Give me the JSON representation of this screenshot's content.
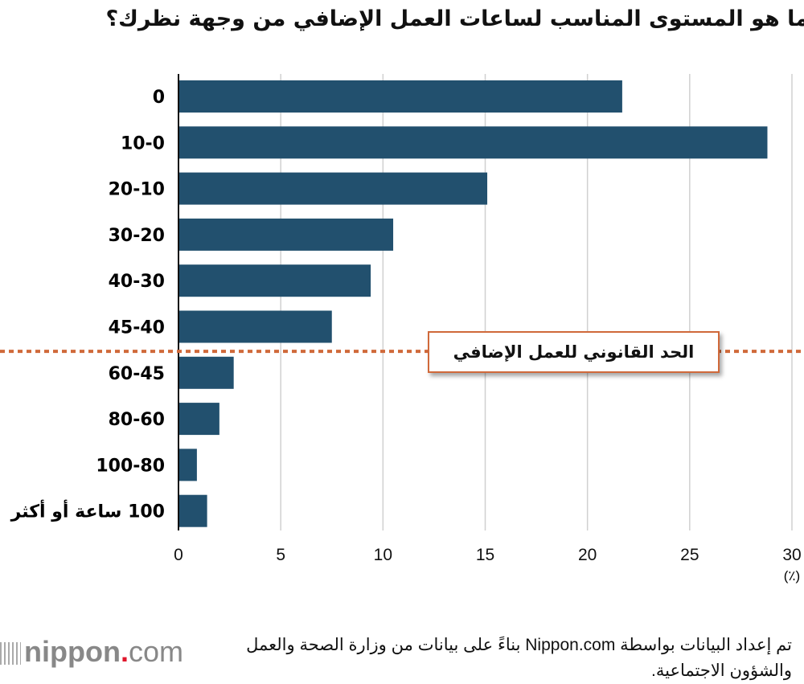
{
  "title": "ما هو المستوى المناسب لساعات العمل الإضافي من وجهة نظرك؟",
  "chart_data": {
    "type": "bar",
    "orientation": "horizontal",
    "categories": [
      "0",
      "10-0",
      "20-10",
      "30-20",
      "40-30",
      "45-40",
      "60-45",
      "80-60",
      "100-80",
      "100 ساعة أو أكثر"
    ],
    "values": [
      21.7,
      28.8,
      15.1,
      10.5,
      9.4,
      7.5,
      2.7,
      2.0,
      0.9,
      1.4
    ],
    "xlim": [
      0,
      30
    ],
    "xticks": [
      "0",
      "5",
      "10",
      "15",
      "20",
      "25",
      "30"
    ],
    "xunit": "(٪)",
    "grid": "vertical",
    "bar_color": "#22506e",
    "annotation": {
      "label": "الحد القانوني للعمل الإضافي",
      "between": [
        "45-40",
        "60-45"
      ],
      "color": "#d0693a",
      "style": "dotted"
    }
  },
  "footnote": "تم إعداد البيانات بواسطة Nippon.com بناءً على بيانات من وزارة الصحة والعمل والشؤون الاجتماعية.",
  "logo": {
    "name": "nippon",
    "dot": ".",
    "com": "com"
  }
}
